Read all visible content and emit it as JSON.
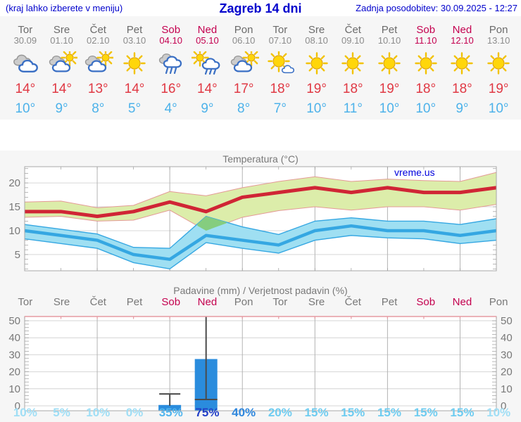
{
  "header": {
    "left_note": "(kraj lahko izberete v meniju)",
    "title": "Zagreb 14 dni",
    "updated": "Zadnja posodobitev: 30.09.2025 - 12:27"
  },
  "colors": {
    "header_blue": "#0000cc",
    "weekend": "#c4004f",
    "weekday": "#6b6b6b",
    "high_temp": "#e03944",
    "low_temp": "#4db2ea",
    "panel_bg": "#f6f6f6",
    "prob_tiers": {
      "p0_10": "#9fdef5",
      "p15_20": "#6fccf0",
      "p25_35": "#52b6ee",
      "p40_55": "#2f87dd",
      "p60_plus": "#2340c8"
    }
  },
  "days": [
    {
      "name": "Tor",
      "date": "30.09",
      "weekend": false,
      "icon": "cloudy",
      "high_label": "14°",
      "low_label": "10°",
      "prob_label": "10%",
      "prob_pct": 10
    },
    {
      "name": "Sre",
      "date": "01.10",
      "weekend": false,
      "icon": "partly",
      "high_label": "14°",
      "low_label": "9°",
      "prob_label": "5%",
      "prob_pct": 5
    },
    {
      "name": "Čet",
      "date": "02.10",
      "weekend": false,
      "icon": "partly",
      "high_label": "13°",
      "low_label": "8°",
      "prob_label": "10%",
      "prob_pct": 10
    },
    {
      "name": "Pet",
      "date": "03.10",
      "weekend": false,
      "icon": "sunny",
      "high_label": "14°",
      "low_label": "5°",
      "prob_label": "0%",
      "prob_pct": 0
    },
    {
      "name": "Sob",
      "date": "04.10",
      "weekend": true,
      "icon": "rain",
      "high_label": "16°",
      "low_label": "4°",
      "prob_label": "35%",
      "prob_pct": 35
    },
    {
      "name": "Ned",
      "date": "05.10",
      "weekend": true,
      "icon": "sun_rain",
      "high_label": "14°",
      "low_label": "9°",
      "prob_label": "75%",
      "prob_pct": 75
    },
    {
      "name": "Pon",
      "date": "06.10",
      "weekend": false,
      "icon": "partly",
      "high_label": "17°",
      "low_label": "8°",
      "prob_label": "40%",
      "prob_pct": 40
    },
    {
      "name": "Tor",
      "date": "07.10",
      "weekend": false,
      "icon": "mostly_sunny",
      "high_label": "18°",
      "low_label": "7°",
      "prob_label": "20%",
      "prob_pct": 20
    },
    {
      "name": "Sre",
      "date": "08.10",
      "weekend": false,
      "icon": "sunny",
      "high_label": "19°",
      "low_label": "10°",
      "prob_label": "15%",
      "prob_pct": 15
    },
    {
      "name": "Čet",
      "date": "09.10",
      "weekend": false,
      "icon": "sunny",
      "high_label": "18°",
      "low_label": "11°",
      "prob_label": "15%",
      "prob_pct": 15
    },
    {
      "name": "Pet",
      "date": "10.10",
      "weekend": false,
      "icon": "sunny",
      "high_label": "19°",
      "low_label": "10°",
      "prob_label": "15%",
      "prob_pct": 15
    },
    {
      "name": "Sob",
      "date": "11.10",
      "weekend": true,
      "icon": "sunny",
      "high_label": "18°",
      "low_label": "10°",
      "prob_label": "15%",
      "prob_pct": 15
    },
    {
      "name": "Ned",
      "date": "12.10",
      "weekend": true,
      "icon": "sunny",
      "high_label": "18°",
      "low_label": "9°",
      "prob_label": "15%",
      "prob_pct": 15
    },
    {
      "name": "Pon",
      "date": "13.10",
      "weekend": false,
      "icon": "sunny",
      "high_label": "19°",
      "low_label": "10°",
      "prob_label": "10%",
      "prob_pct": 10
    }
  ],
  "chart_data": [
    {
      "type": "line",
      "title": "Temperatura (°C)",
      "watermark": "vreme.us",
      "ylim": [
        1.6,
        23.4
      ],
      "yticks": [
        5,
        10,
        15,
        20
      ],
      "grid_x_day_indices": [
        2,
        4,
        6,
        8,
        10,
        12
      ],
      "series": [
        {
          "name": "max-temp",
          "color": "#d02535",
          "values": [
            14,
            14,
            13,
            14,
            16,
            14,
            17,
            18,
            19,
            18,
            19,
            18,
            18,
            19
          ]
        },
        {
          "name": "max-band-upper",
          "color": "#dcedaa",
          "values": [
            16,
            16.2,
            14.8,
            15.3,
            18.2,
            17.3,
            19,
            20.3,
            21.3,
            20.3,
            20.8,
            20.5,
            20.3,
            22.2
          ]
        },
        {
          "name": "max-band-lower",
          "color": "#dcedaa",
          "values": [
            12.8,
            13,
            12,
            12.2,
            14.3,
            10,
            12.8,
            14.2,
            15,
            14.3,
            15,
            15,
            14.3,
            15.5
          ]
        },
        {
          "name": "min-temp",
          "color": "#35a7e2",
          "values": [
            10,
            9,
            8,
            5,
            4,
            9,
            8,
            7,
            10,
            11,
            10,
            10,
            9,
            10
          ]
        },
        {
          "name": "min-band-upper",
          "color": "#9fdff2",
          "values": [
            11.3,
            10.3,
            9.3,
            6.5,
            6.3,
            13,
            10.8,
            9.2,
            12,
            12.7,
            12,
            12,
            11.3,
            12.5
          ]
        },
        {
          "name": "min-band-lower",
          "color": "#9fdff2",
          "values": [
            8.3,
            7.3,
            6.3,
            3.3,
            2,
            7.5,
            6.3,
            5.3,
            8,
            9,
            8.5,
            8.3,
            7.3,
            8
          ]
        }
      ],
      "band_overlap_color": "#85cd7f",
      "band_edge_red": "#e49a96"
    },
    {
      "type": "bar",
      "title": "Padavine (mm) / Verjetnost padavin (%)",
      "categories": [
        "Tor",
        "Sre",
        "Čet",
        "Pet",
        "Sob",
        "Ned",
        "Pon",
        "Tor",
        "Sre",
        "Čet",
        "Pet",
        "Sob",
        "Ned",
        "Pon"
      ],
      "values_mm": [
        0,
        0,
        0,
        0,
        0.5,
        27.5,
        0,
        0,
        0,
        0,
        0,
        0,
        0,
        0
      ],
      "whiskers": [
        null,
        null,
        null,
        null,
        {
          "max": 7
        },
        {
          "min": 3.7,
          "max": 52.5
        },
        null,
        null,
        null,
        null,
        null,
        null,
        null,
        null
      ],
      "probabilities_pct": [
        10,
        5,
        10,
        0,
        35,
        75,
        40,
        20,
        15,
        15,
        15,
        15,
        15,
        10
      ],
      "ylim": [
        0,
        52.5
      ],
      "yticks": [
        0,
        10,
        20,
        30,
        40,
        50
      ],
      "bar_color": "#2a8cdd",
      "whisker_color": "#4a4a4a",
      "top_frame_color": "#e59aa2"
    }
  ]
}
